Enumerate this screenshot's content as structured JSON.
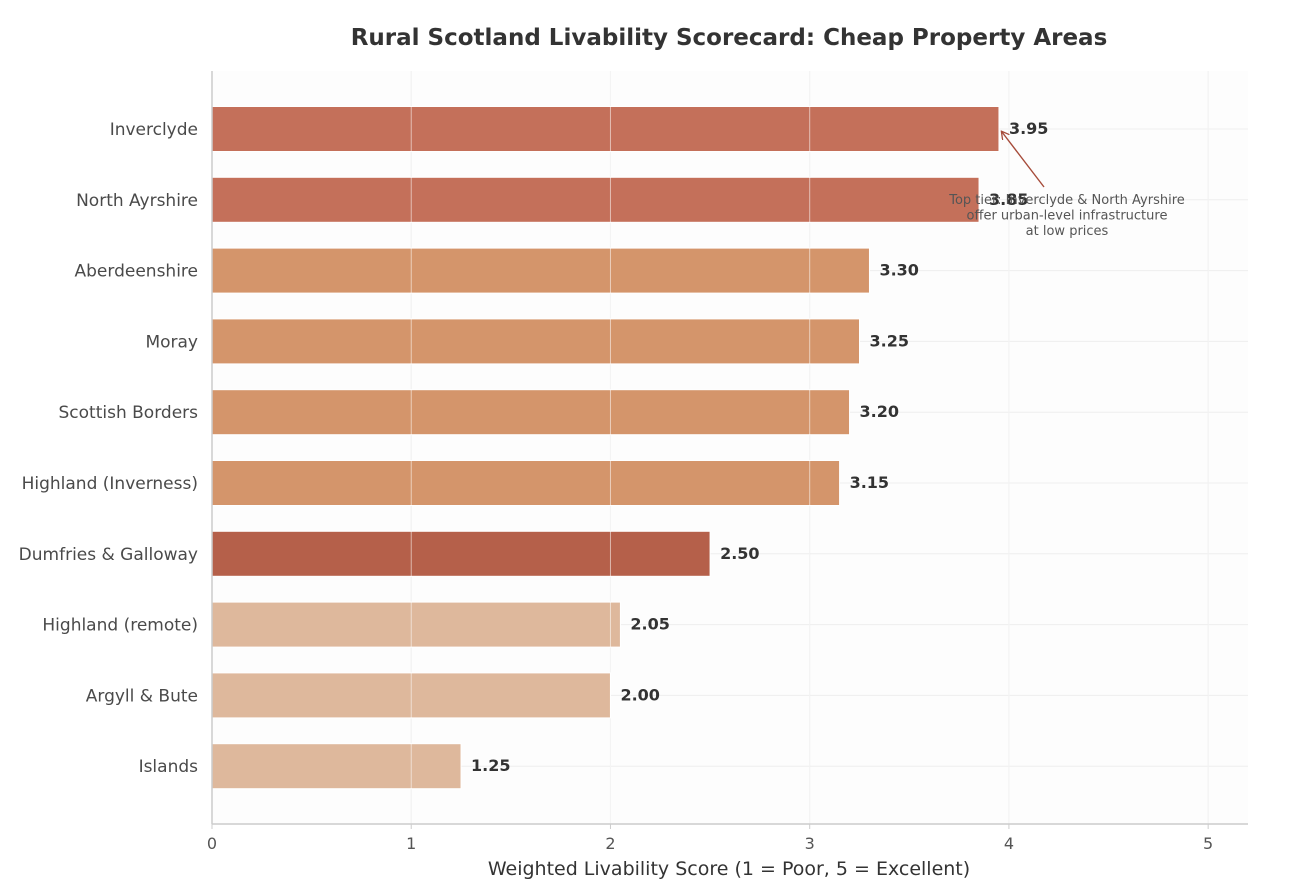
{
  "chart_data": {
    "type": "bar",
    "orientation": "horizontal",
    "title": "Rural Scotland Livability Scorecard: Cheap Property Areas",
    "xlabel": "Weighted Livability Score (1 = Poor, 5 = Excellent)",
    "ylabel": "",
    "xlim": [
      0,
      5.2
    ],
    "xticks": [
      0,
      1,
      2,
      3,
      4,
      5
    ],
    "grid": true,
    "categories": [
      "Inverclyde",
      "North Ayrshire",
      "Aberdeenshire",
      "Moray",
      "Scottish Borders",
      "Highland (Inverness)",
      "Dumfries & Galloway",
      "Highland (remote)",
      "Argyll & Bute",
      "Islands"
    ],
    "values": [
      3.95,
      3.85,
      3.3,
      3.25,
      3.2,
      3.15,
      2.5,
      2.05,
      2.0,
      1.25
    ],
    "value_labels": [
      "3.95",
      "3.85",
      "3.30",
      "3.25",
      "3.20",
      "3.15",
      "2.50",
      "2.05",
      "2.00",
      "1.25"
    ],
    "colors": [
      "#c4705a",
      "#c4705a",
      "#d4956b",
      "#d4956b",
      "#d4956b",
      "#d4956b",
      "#b5604a",
      "#deb89c",
      "#deb89c",
      "#deb89c"
    ],
    "annotation": {
      "lines": [
        "Top tier: Inverclyde & North Ayrshire",
        "offer urban-level infrastructure",
        "at low prices"
      ],
      "target_category": "Inverclyde",
      "target_value": 3.95,
      "arrow_color": "#a64b3a"
    }
  }
}
